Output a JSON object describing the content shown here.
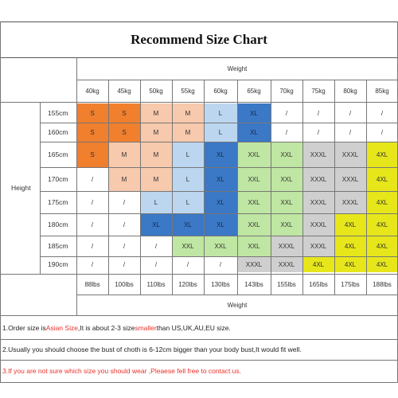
{
  "title": "Recommend Size Chart",
  "weight_label": "Weight",
  "height_label": "Height",
  "weights_kg": [
    "40kg",
    "45kg",
    "50kg",
    "55kg",
    "60kg",
    "65kg",
    "70kg",
    "75kg",
    "80kg",
    "85kg"
  ],
  "weights_lbs": [
    "88lbs",
    "100lbs",
    "110lbs",
    "120lbs",
    "130lbs",
    "143lbs",
    "155lbs",
    "165lbs",
    "175lbs",
    "188lbs"
  ],
  "heights": [
    "155cm",
    "160cm",
    "165cm",
    "170cm",
    "175cm",
    "180cm",
    "185cm",
    "190cm"
  ],
  "grid": [
    [
      "S",
      "S",
      "M",
      "M",
      "L",
      "XL",
      "/",
      "/",
      "/",
      "/"
    ],
    [
      "S",
      "S",
      "M",
      "M",
      "L",
      "XL",
      "/",
      "/",
      "/",
      "/"
    ],
    [
      "S",
      "M",
      "M",
      "L",
      "XL",
      "XXL",
      "XXL",
      "XXXL",
      "XXXL",
      "4XL"
    ],
    [
      "/",
      "M",
      "M",
      "L",
      "XL",
      "XXL",
      "XXL",
      "XXXL",
      "XXXL",
      "4XL"
    ],
    [
      "/",
      "/",
      "L",
      "L",
      "XL",
      "XXL",
      "XXL",
      "XXXL",
      "XXXL",
      "4XL"
    ],
    [
      "/",
      "/",
      "XL",
      "XL",
      "XL",
      "XXL",
      "XXL",
      "XXXL",
      "4XL",
      "4XL"
    ],
    [
      "/",
      "/",
      "/",
      "XXL",
      "XXL",
      "XXL",
      "XXXL",
      "XXXL",
      "4XL",
      "4XL"
    ],
    [
      "/",
      "/",
      "/",
      "/",
      "/",
      "XXXL",
      "XXXL",
      "4XL",
      "4XL",
      "4XL"
    ]
  ],
  "colors": {
    "S": "#f07f2e",
    "M": "#f7c9ad",
    "L": "#bcd6f0",
    "XL": "#3b78c6",
    "XXL": "#bfe6a2",
    "XXXL": "#cfcfcf",
    "4XL": "#e6e61b",
    "/": "#ffffff"
  },
  "notes": {
    "note1_a": "1.Order size is ",
    "note1_b": "Asian Size",
    "note1_c": ",It is about 2-3 size ",
    "note1_d": "smaller",
    "note1_e": " than US,UK,AU,EU size.",
    "note2": "2.Usually you should choose the bust of choth is 6-12cm bigger than your body bust,It would fit well.",
    "note3": "3.If you are not sure which size you should wear ,Pleaese fell free to contact us."
  }
}
